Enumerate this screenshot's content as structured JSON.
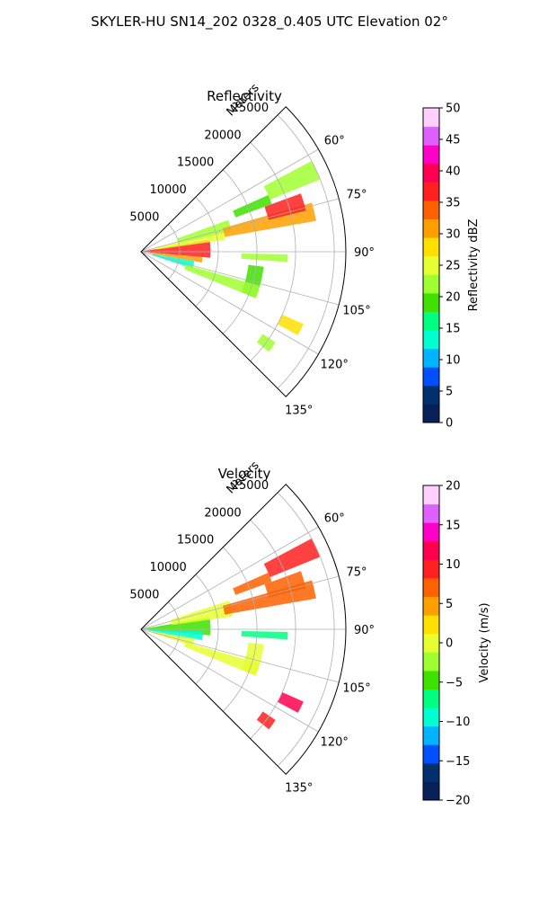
{
  "figure": {
    "title": "SKYLER-HU  SN14_202  0328_0.405 UTC Elevation 02°"
  },
  "chart_data": [
    {
      "type": "heatmap",
      "projection": "polar-sector",
      "title": "Reflectivity",
      "radial_label": "Meters",
      "radial_ticks": [
        "5000",
        "10000",
        "15000",
        "20000",
        "25000"
      ],
      "radial_tick_values": [
        5000,
        10000,
        15000,
        20000,
        25000
      ],
      "rmax": 26500,
      "azimuth_range": [
        45,
        135
      ],
      "azimuth_ticks": [
        "60°",
        "75°",
        "90°",
        "105°",
        "120°",
        "135°"
      ],
      "azimuth_tick_values": [
        60,
        75,
        90,
        105,
        120,
        135
      ],
      "grid": true,
      "colorbar": {
        "label": "Reflectivity dBZ",
        "range": [
          0,
          50
        ],
        "ticks": [
          "0",
          "5",
          "10",
          "15",
          "20",
          "25",
          "30",
          "35",
          "40",
          "45",
          "50"
        ],
        "tick_values": [
          0,
          5,
          10,
          15,
          20,
          25,
          30,
          35,
          40,
          45,
          50
        ],
        "colormap": [
          "#08205a",
          "#00306e",
          "#0050ff",
          "#00b4ff",
          "#00ffd0",
          "#00ff80",
          "#40e000",
          "#a0ff30",
          "#e6ff30",
          "#ffe000",
          "#ffa000",
          "#ff6000",
          "#ff2020",
          "#ff0050",
          "#ff00c8",
          "#e060ff",
          "#ffd0ff"
        ]
      },
      "echoes": [
        {
          "az": [
            80,
            95
          ],
          "r": [
            0,
            9000
          ],
          "value": 36
        },
        {
          "az": [
            76,
            82
          ],
          "r": [
            2000,
            11000
          ],
          "value": 26
        },
        {
          "az": [
            95,
            100
          ],
          "r": [
            1000,
            8000
          ],
          "value": 30
        },
        {
          "az": [
            70,
            77
          ],
          "r": [
            5000,
            12000
          ],
          "value": 22
        },
        {
          "az": [
            100,
            108
          ],
          "r": [
            1500,
            7000
          ],
          "value": 14
        },
        {
          "az": [
            74,
            80
          ],
          "r": [
            11000,
            23000
          ],
          "value": 32
        },
        {
          "az": [
            70,
            76
          ],
          "r": [
            17000,
            22000
          ],
          "value": 38
        },
        {
          "az": [
            62,
            68
          ],
          "r": [
            18000,
            25000
          ],
          "value": 22
        },
        {
          "az": [
            66,
            70
          ],
          "r": [
            13000,
            18000
          ],
          "value": 20
        },
        {
          "az": [
            91,
            94
          ],
          "r": [
            13000,
            19000
          ],
          "value": 22
        },
        {
          "az": [
            97,
            112
          ],
          "r": [
            14000,
            16000
          ],
          "value": 20
        },
        {
          "az": [
            106,
            112
          ],
          "r": [
            6000,
            16000
          ],
          "value": 22
        },
        {
          "az": [
            114,
            118
          ],
          "r": [
            20000,
            23000
          ],
          "value": 28
        },
        {
          "az": [
            124,
            128
          ],
          "r": [
            19000,
            21000
          ],
          "value": 22
        }
      ]
    },
    {
      "type": "heatmap",
      "projection": "polar-sector",
      "title": "Velocity",
      "radial_label": "Meters",
      "radial_ticks": [
        "5000",
        "10000",
        "15000",
        "20000",
        "25000"
      ],
      "radial_tick_values": [
        5000,
        10000,
        15000,
        20000,
        25000
      ],
      "rmax": 26500,
      "azimuth_range": [
        45,
        135
      ],
      "azimuth_ticks": [
        "60°",
        "75°",
        "90°",
        "105°",
        "120°",
        "135°"
      ],
      "azimuth_tick_values": [
        60,
        75,
        90,
        105,
        120,
        135
      ],
      "grid": true,
      "colorbar": {
        "label": "Velocity (m/s)",
        "range": [
          -20,
          20
        ],
        "ticks": [
          "−20",
          "−15",
          "−10",
          "−5",
          "0",
          "5",
          "10",
          "15",
          "20"
        ],
        "tick_values": [
          -20,
          -15,
          -10,
          -5,
          0,
          5,
          10,
          15,
          20
        ],
        "colormap": [
          "#08205a",
          "#00306e",
          "#0050ff",
          "#00b4ff",
          "#00ffd0",
          "#00ff80",
          "#40e000",
          "#a0ff30",
          "#e6ff30",
          "#ffe000",
          "#ffa000",
          "#ff6000",
          "#ff2020",
          "#ff0050",
          "#ff00c8",
          "#e060ff",
          "#ffd0ff"
        ]
      },
      "echoes": [
        {
          "az": [
            80,
            95
          ],
          "r": [
            0,
            9000
          ],
          "value": -4
        },
        {
          "az": [
            92,
            100
          ],
          "r": [
            1000,
            8000
          ],
          "value": -9
        },
        {
          "az": [
            72,
            82
          ],
          "r": [
            4000,
            12000
          ],
          "value": 1
        },
        {
          "az": [
            100,
            108
          ],
          "r": [
            1500,
            7000
          ],
          "value": 0
        },
        {
          "az": [
            74,
            80
          ],
          "r": [
            11000,
            23000
          ],
          "value": 6
        },
        {
          "az": [
            70,
            76
          ],
          "r": [
            17000,
            22000
          ],
          "value": 8
        },
        {
          "az": [
            62,
            68
          ],
          "r": [
            18000,
            25000
          ],
          "value": 10
        },
        {
          "az": [
            66,
            70
          ],
          "r": [
            13000,
            18000
          ],
          "value": 7
        },
        {
          "az": [
            91,
            94
          ],
          "r": [
            13000,
            19000
          ],
          "value": -6
        },
        {
          "az": [
            97,
            112
          ],
          "r": [
            14000,
            16000
          ],
          "value": 1
        },
        {
          "az": [
            106,
            112
          ],
          "r": [
            6000,
            16000
          ],
          "value": 0
        },
        {
          "az": [
            114,
            118
          ],
          "r": [
            20000,
            23000
          ],
          "value": 12
        },
        {
          "az": [
            124,
            128
          ],
          "r": [
            19000,
            21000
          ],
          "value": 9
        }
      ]
    }
  ]
}
